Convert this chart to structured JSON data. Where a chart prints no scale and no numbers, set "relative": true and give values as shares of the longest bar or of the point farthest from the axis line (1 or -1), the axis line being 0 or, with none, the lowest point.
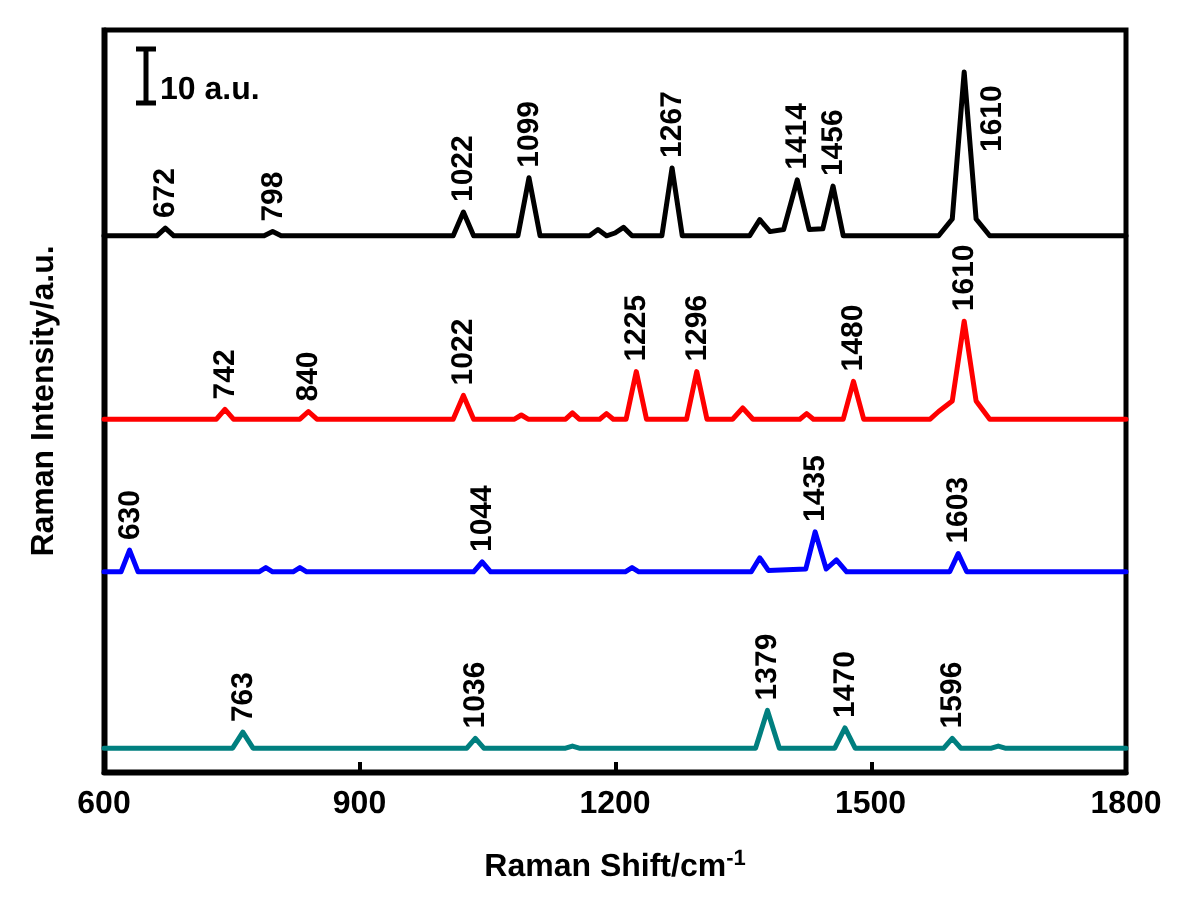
{
  "chart_data": {
    "type": "line",
    "relative": true,
    "xlabel": "Raman Shift/cm$^{-1}$",
    "ylabel": "Raman Intensity/a.u.",
    "xlim": [
      600,
      1800
    ],
    "xticks": [
      600,
      900,
      1200,
      1500,
      1800
    ],
    "tick_labels": "x",
    "marker": "none",
    "line_style": "solid",
    "series": [
      {
        "color": "#000000",
        "x": [
          600,
          662,
          672,
          682,
          788,
          798,
          808,
          1010,
          1022,
          1034,
          1086,
          1099,
          1112,
          1170,
          1180,
          1190,
          1200,
          1210,
          1220,
          1255,
          1267,
          1279,
          1358,
          1370,
          1382,
          1398,
          1414,
          1428,
          1444,
          1456,
          1468,
          1580,
          1596,
          1610,
          1624,
          1640,
          1800
        ],
        "values": [
          0.766,
          0.766,
          0.777,
          0.766,
          0.766,
          0.772,
          0.766,
          0.766,
          0.8,
          0.766,
          0.766,
          0.849,
          0.766,
          0.766,
          0.775,
          0.766,
          0.77,
          0.778,
          0.766,
          0.766,
          0.863,
          0.766,
          0.766,
          0.789,
          0.772,
          0.775,
          0.846,
          0.775,
          0.776,
          0.837,
          0.766,
          0.766,
          0.79,
          1.0,
          0.79,
          0.766,
          0.766
        ]
      },
      {
        "color": "#ff0000",
        "x": [
          600,
          732,
          742,
          752,
          830,
          840,
          850,
          1010,
          1022,
          1034,
          1082,
          1090,
          1098,
          1142,
          1150,
          1158,
          1182,
          1190,
          1198,
          1213,
          1225,
          1237,
          1284,
          1296,
          1308,
          1338,
          1350,
          1362,
          1417,
          1425,
          1433,
          1468,
          1480,
          1492,
          1570,
          1580,
          1596,
          1610,
          1624,
          1640,
          1800
        ],
        "values": [
          0.504,
          0.504,
          0.518,
          0.504,
          0.504,
          0.515,
          0.504,
          0.504,
          0.538,
          0.504,
          0.504,
          0.51,
          0.504,
          0.504,
          0.513,
          0.504,
          0.504,
          0.512,
          0.504,
          0.504,
          0.572,
          0.504,
          0.504,
          0.572,
          0.504,
          0.504,
          0.52,
          0.504,
          0.504,
          0.512,
          0.504,
          0.504,
          0.558,
          0.504,
          0.504,
          0.515,
          0.53,
          0.644,
          0.53,
          0.504,
          0.504
        ]
      },
      {
        "color": "#0000ff",
        "x": [
          600,
          620,
          630,
          640,
          782,
          790,
          798,
          822,
          830,
          838,
          1034,
          1044,
          1054,
          1212,
          1220,
          1228,
          1360,
          1370,
          1380,
          1424,
          1435,
          1448,
          1460,
          1472,
          1593,
          1603,
          1613,
          1800
        ],
        "values": [
          0.286,
          0.286,
          0.317,
          0.286,
          0.286,
          0.292,
          0.286,
          0.286,
          0.292,
          0.286,
          0.286,
          0.3,
          0.286,
          0.286,
          0.292,
          0.286,
          0.286,
          0.306,
          0.288,
          0.29,
          0.343,
          0.29,
          0.303,
          0.286,
          0.286,
          0.312,
          0.286,
          0.286
        ]
      },
      {
        "color": "#007f7f",
        "x": [
          600,
          751,
          763,
          775,
          1026,
          1036,
          1046,
          1142,
          1150,
          1158,
          1365,
          1379,
          1393,
          1458,
          1470,
          1482,
          1586,
          1596,
          1606,
          1642,
          1650,
          1658,
          1800
        ],
        "values": [
          0.034,
          0.034,
          0.057,
          0.034,
          0.034,
          0.048,
          0.034,
          0.034,
          0.037,
          0.034,
          0.034,
          0.088,
          0.034,
          0.034,
          0.063,
          0.034,
          0.034,
          0.048,
          0.034,
          0.034,
          0.037,
          0.034,
          0.034
        ]
      }
    ],
    "annotations": [
      "10 a.u.",
      {
        "text": "672",
        "x": 672,
        "y": 0.777
      },
      {
        "text": "798",
        "x": 798,
        "y": 0.772
      },
      {
        "text": "1022",
        "x": 1022,
        "y": 0.8
      },
      {
        "text": "1099",
        "x": 1099,
        "y": 0.849
      },
      {
        "text": "1267",
        "x": 1267,
        "y": 0.863
      },
      {
        "text": "1414",
        "x": 1414,
        "y": 0.846
      },
      {
        "text": "1456",
        "x": 1456,
        "y": 0.837
      },
      {
        "text": "1610",
        "x": 1610,
        "y": 1.0
      },
      {
        "text": "742",
        "x": 742,
        "y": 0.518
      },
      {
        "text": "840",
        "x": 840,
        "y": 0.515
      },
      {
        "text": "1022",
        "x": 1022,
        "y": 0.538
      },
      {
        "text": "1225",
        "x": 1225,
        "y": 0.572
      },
      {
        "text": "1296",
        "x": 1296,
        "y": 0.572
      },
      {
        "text": "1480",
        "x": 1480,
        "y": 0.558
      },
      {
        "text": "1610",
        "x": 1610,
        "y": 0.644
      },
      {
        "text": "630",
        "x": 630,
        "y": 0.317
      },
      {
        "text": "1044",
        "x": 1044,
        "y": 0.3
      },
      {
        "text": "1435",
        "x": 1435,
        "y": 0.343
      },
      {
        "text": "1603",
        "x": 1603,
        "y": 0.312
      },
      {
        "text": "763",
        "x": 763,
        "y": 0.057
      },
      {
        "text": "1036",
        "x": 1036,
        "y": 0.048
      },
      {
        "text": "1379",
        "x": 1379,
        "y": 0.088
      },
      {
        "text": "1470",
        "x": 1470,
        "y": 0.063
      },
      {
        "text": "1596",
        "x": 1596,
        "y": 0.048
      }
    ]
  }
}
